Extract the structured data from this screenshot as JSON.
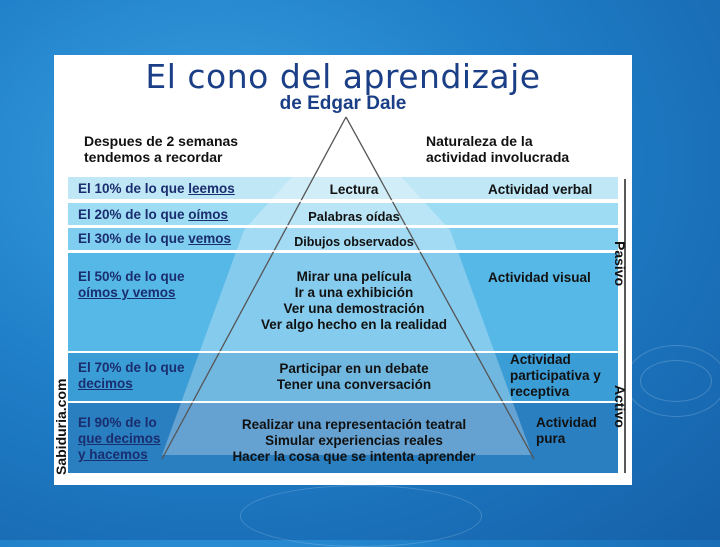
{
  "title": "El cono del aprendizaje",
  "subtitle": "de Edgar Dale",
  "header_left": [
    "Despues de 2 semanas",
    "tendemos a recordar"
  ],
  "header_right": [
    "Naturaleza de la",
    "actividad involucrada"
  ],
  "rows": [
    {
      "left_prefix": "El 10% de lo que ",
      "left_verb": "leemos",
      "center": [
        "Lectura"
      ],
      "right": [
        "Actividad verbal"
      ]
    },
    {
      "left_prefix": "El 20% de lo que ",
      "left_verb": "oímos",
      "center": [
        "Palabras oídas"
      ],
      "right": []
    },
    {
      "left_prefix": "El 30% de lo que ",
      "left_verb": "vemos",
      "center": [
        "Dibujos observados"
      ],
      "right": []
    },
    {
      "left_lines": [
        "El 50% de lo que",
        "oímos y vemos"
      ],
      "center": [
        "Mirar una película",
        "Ir a una exhibición",
        "Ver una demostración",
        "Ver algo hecho en la realidad"
      ],
      "right": [
        "Actividad visual"
      ]
    },
    {
      "left_lines": [
        "El 70% de lo que",
        "decimos"
      ],
      "center": [
        "Participar en un debate",
        "Tener una conversación"
      ],
      "right": [
        "Actividad",
        "participativa y",
        "receptiva"
      ]
    },
    {
      "left_lines": [
        "El 90% de lo",
        "que decimos",
        "y hacemos"
      ],
      "center": [
        "Realizar una representación teatral",
        "Simular experiencias reales",
        "Hacer la cosa que se intenta aprender"
      ],
      "right": [
        "Actividad",
        "pura"
      ]
    }
  ],
  "side_labels": {
    "passive": "Pasivo",
    "active": "Activo"
  },
  "credit": "Sabiduria.com",
  "colors": {
    "title": "#1b3f86",
    "band_light": "#bfe7f6",
    "band_dark": "#2a7fc0",
    "background": "#1f7fc8"
  }
}
